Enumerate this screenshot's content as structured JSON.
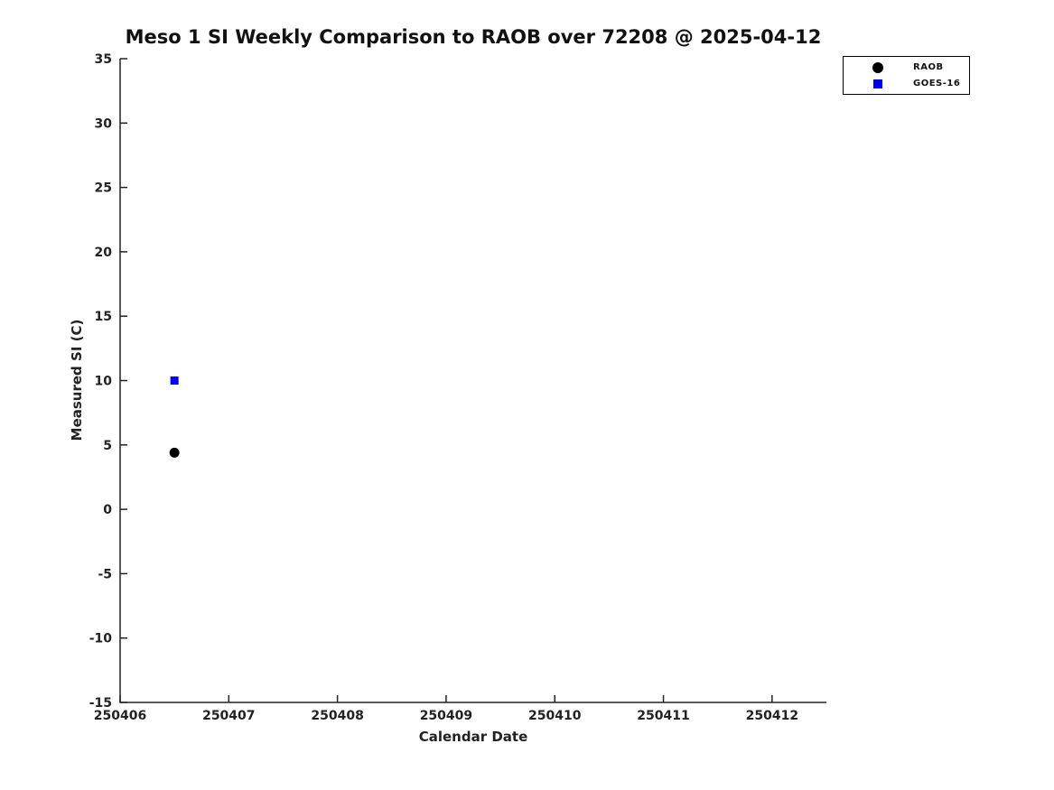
{
  "chart_data": {
    "type": "scatter",
    "title": "Meso 1 SI Weekly Comparison to RAOB over 72208 @ 2025-04-12",
    "xlabel": "Calendar Date",
    "ylabel": "Measured SI (C)",
    "xlim": [
      250406,
      250412.5
    ],
    "ylim": [
      -15,
      35
    ],
    "xticks": [
      250406,
      250407,
      250408,
      250409,
      250410,
      250411,
      250412
    ],
    "yticks": [
      -15,
      -10,
      -5,
      0,
      5,
      10,
      15,
      20,
      25,
      30,
      35
    ],
    "grid": false,
    "legend_position": "top-right",
    "axis_color": "#222222",
    "series": [
      {
        "name": "RAOB",
        "marker": "circle",
        "color": "#000000",
        "points": [
          {
            "x": 250406.5,
            "y": 4.4
          }
        ]
      },
      {
        "name": "GOES-16",
        "marker": "square",
        "color": "#0000f0",
        "points": [
          {
            "x": 250406.5,
            "y": 10.0
          }
        ]
      }
    ]
  }
}
